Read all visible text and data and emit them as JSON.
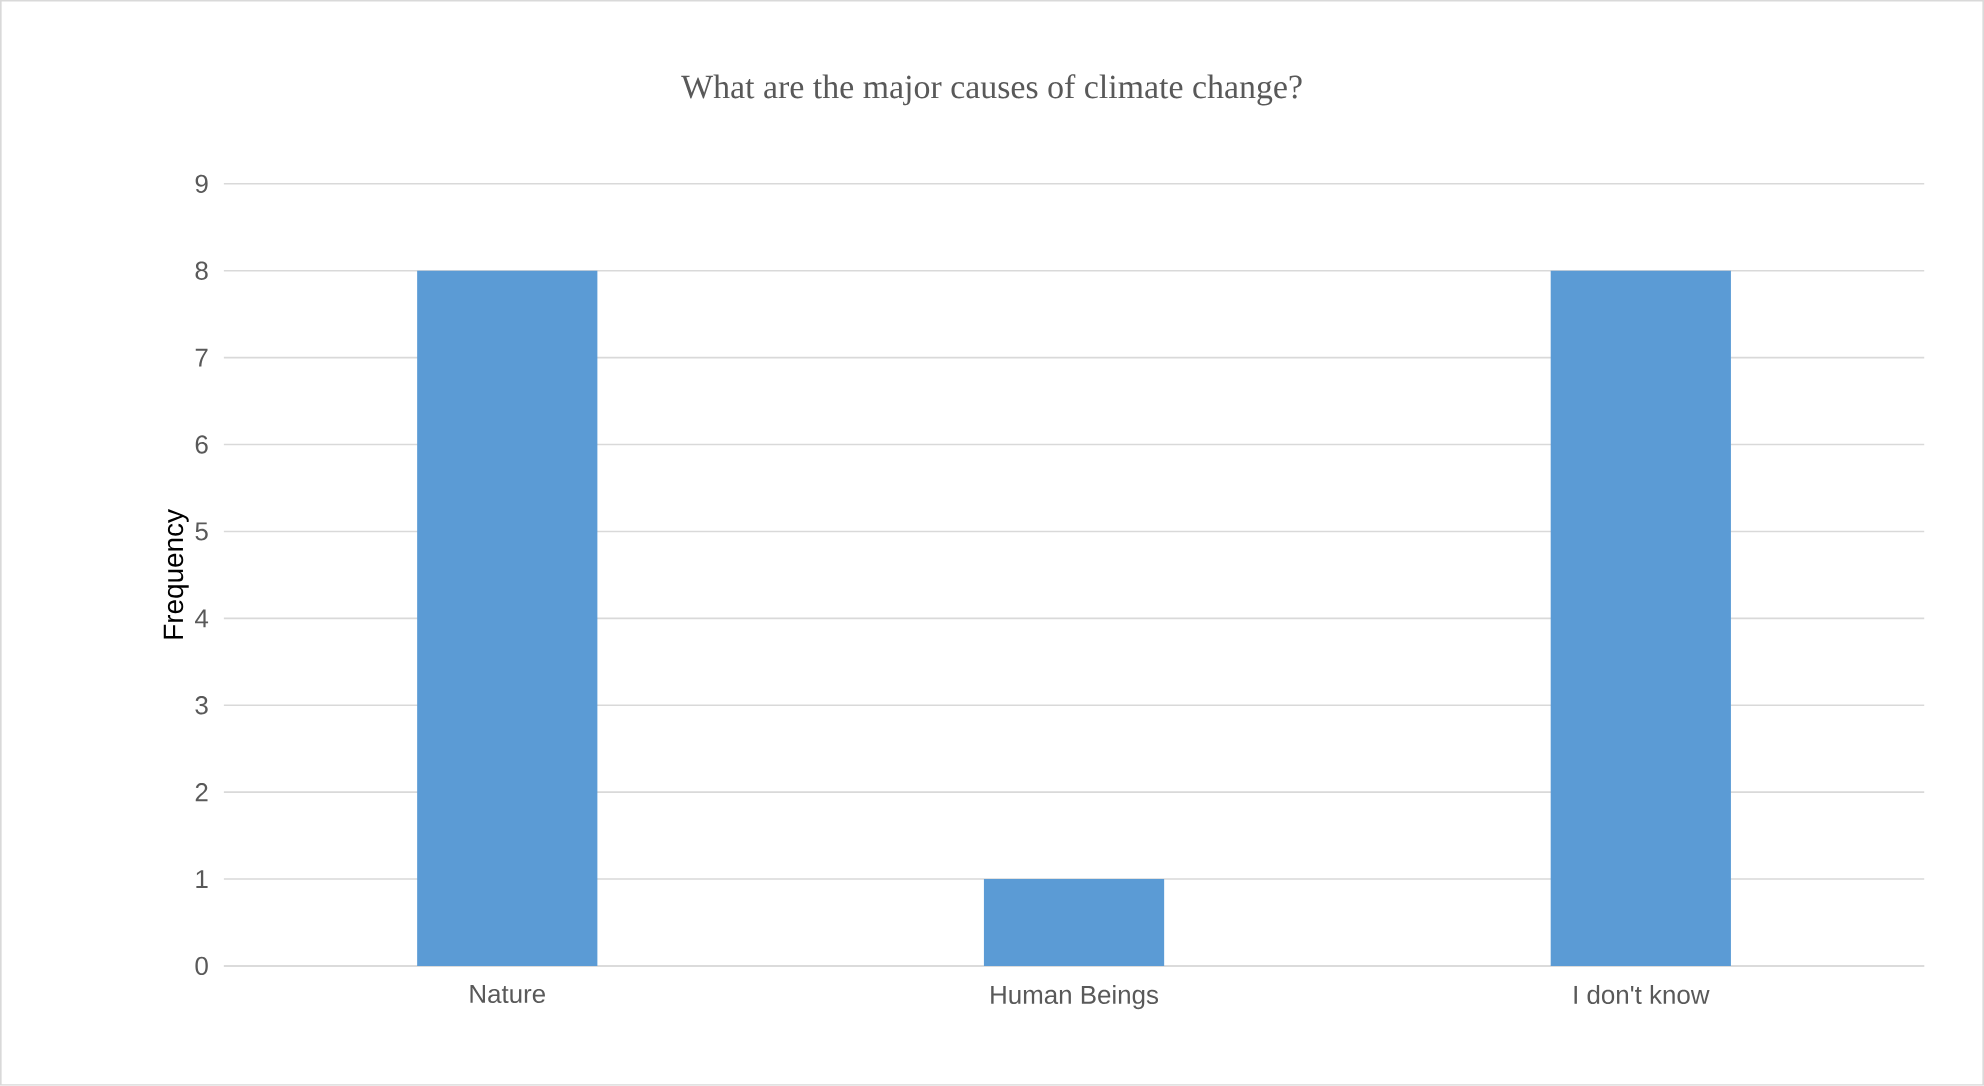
{
  "chart_data": {
    "type": "bar",
    "title": "What are the major causes of climate change?",
    "ylabel": "Frequency",
    "categories": [
      "Nature",
      "Human Beings",
      "I don't know"
    ],
    "values": [
      8,
      1,
      8
    ],
    "color": "#5b9bd5",
    "ylim": [
      0,
      9
    ],
    "yticks": [
      0,
      1,
      2,
      3,
      4,
      5,
      6,
      7,
      8,
      9
    ],
    "grid": "y"
  }
}
